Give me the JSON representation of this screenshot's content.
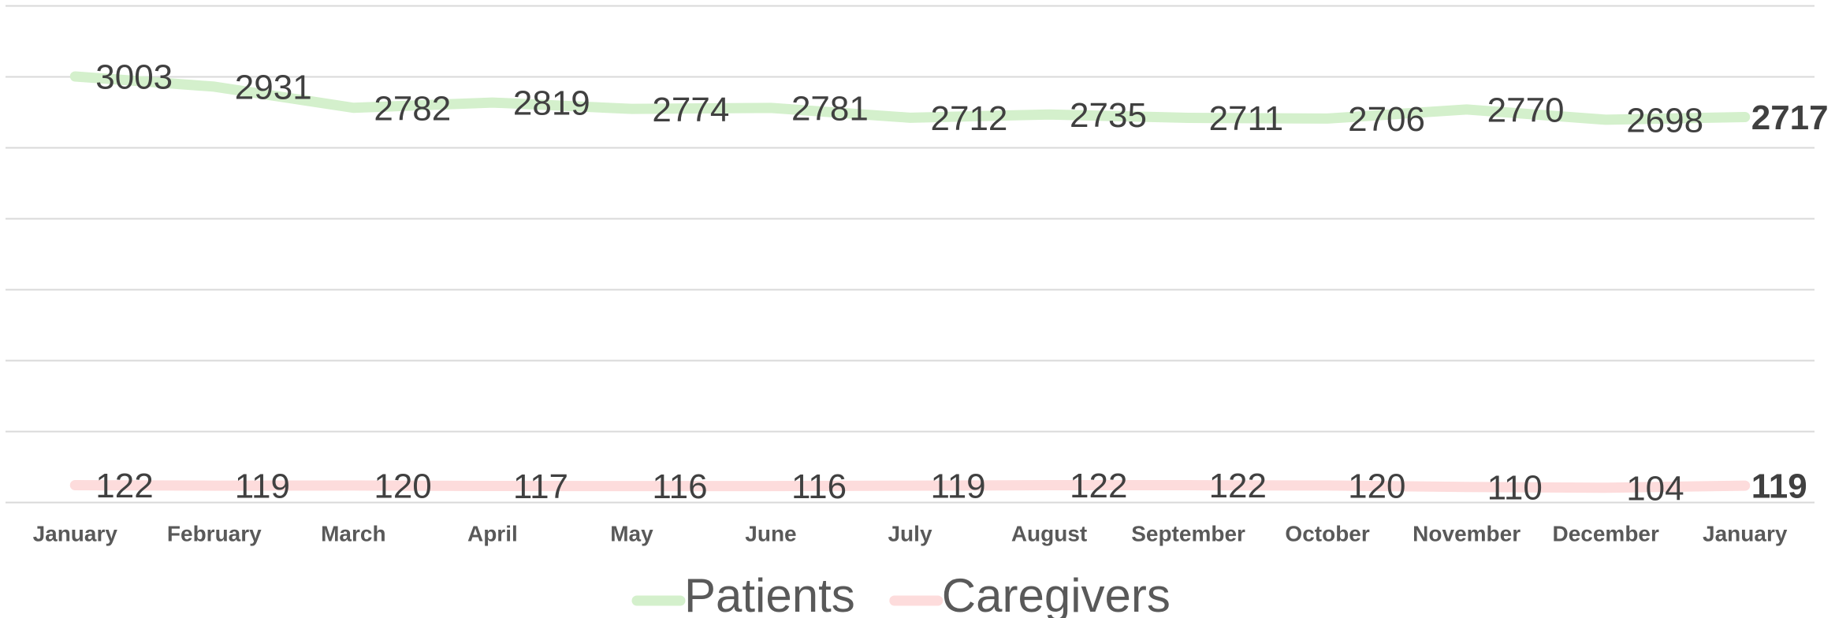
{
  "chart_data": {
    "type": "line",
    "categories": [
      "January",
      "February",
      "March",
      "April",
      "May",
      "June",
      "July",
      "August",
      "September",
      "October",
      "November",
      "December",
      "January"
    ],
    "series": [
      {
        "name": "Patients",
        "color": "#d4f0cc",
        "values": [
          3003,
          2931,
          2782,
          2819,
          2774,
          2781,
          2712,
          2735,
          2711,
          2706,
          2770,
          2698,
          2717
        ]
      },
      {
        "name": "Caregivers",
        "color": "#fddcdc",
        "values": [
          122,
          119,
          120,
          117,
          116,
          116,
          119,
          122,
          122,
          120,
          110,
          104,
          119
        ]
      }
    ],
    "ylim": [
      0,
      3500
    ],
    "yticks": [
      0,
      500,
      1000,
      1500,
      2000,
      2500,
      3000,
      3500
    ],
    "grid": true,
    "legend": "bottom"
  }
}
